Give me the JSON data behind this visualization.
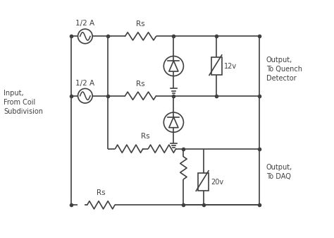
{
  "bg_color": "#ffffff",
  "line_color": "#404040",
  "line_width": 1.2,
  "font_size": 7.5,
  "labels": {
    "half_A_1": "1/2 A",
    "half_A_2": "1/2 A",
    "Rs1": "Rs",
    "Rs2": "Rs",
    "Rs3": "Rs",
    "Rs4": "Rs",
    "12v": "12v",
    "20v": "20v",
    "input_label": "Input,\nFrom Coil\nSubdivision",
    "output1_label": "Output,\nTo Quench\nDetector",
    "output2_label": "Output,\nTo DAQ"
  }
}
